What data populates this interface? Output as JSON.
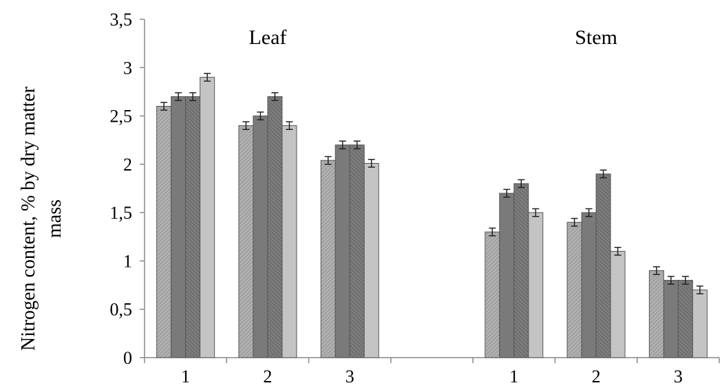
{
  "chart_data": {
    "type": "bar",
    "ylabel_line1": "Nitrogen content, % by dry matter",
    "ylabel_line2": "mass",
    "ylim": [
      0,
      3.5
    ],
    "yticks": [
      "0",
      "0,5",
      "1",
      "1,5",
      "2",
      "2,5",
      "3",
      "3,5"
    ],
    "grid": false,
    "panels": [
      {
        "title": "Leaf",
        "categories": [
          "1",
          "2",
          "3"
        ],
        "values": [
          [
            2.6,
            2.7,
            2.7,
            2.9
          ],
          [
            2.4,
            2.5,
            2.7,
            2.4
          ],
          [
            2.04,
            2.2,
            2.2,
            2.01
          ]
        ]
      },
      {
        "title": "Stem",
        "categories": [
          "1",
          "2",
          "3"
        ],
        "values": [
          [
            1.3,
            1.7,
            1.8,
            1.5
          ],
          [
            1.4,
            1.5,
            1.9,
            1.1
          ],
          [
            0.9,
            0.8,
            0.8,
            0.7
          ]
        ]
      }
    ],
    "error": 0.04,
    "series_colors": [
      "#a8a8a8",
      "#7a7a7a",
      "#6e6e6e",
      "#c4c4c4"
    ]
  }
}
